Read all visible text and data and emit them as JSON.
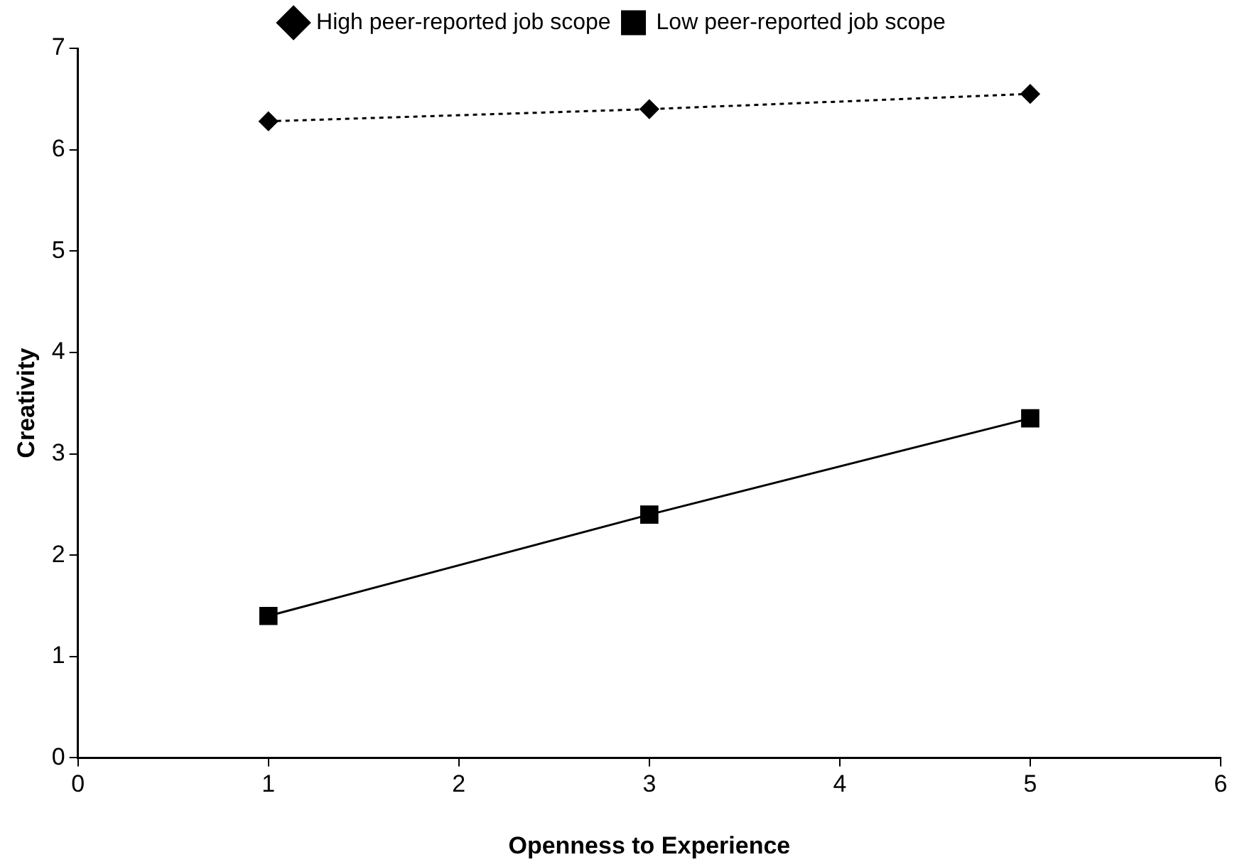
{
  "chart_data": {
    "type": "line",
    "xlabel": "Openness to Experience",
    "ylabel": "Creativity",
    "x": [
      1,
      3,
      5
    ],
    "series": [
      {
        "name": "High peer-reported job scope",
        "color": "#000000",
        "values": [
          6.28,
          6.4,
          6.55
        ],
        "marker": "diamond",
        "line_style": "dotted"
      },
      {
        "name": "Low peer-reported job scope",
        "color": "#000000",
        "values": [
          1.4,
          2.4,
          3.35
        ],
        "marker": "square",
        "line_style": "solid"
      }
    ],
    "xlim": [
      0,
      6
    ],
    "xticks": [
      0,
      1,
      2,
      3,
      4,
      5,
      6
    ],
    "ylim": [
      0,
      7
    ],
    "yticks": [
      0,
      1,
      2,
      3,
      4,
      5,
      6,
      7
    ],
    "grid": false,
    "legend": "top"
  }
}
